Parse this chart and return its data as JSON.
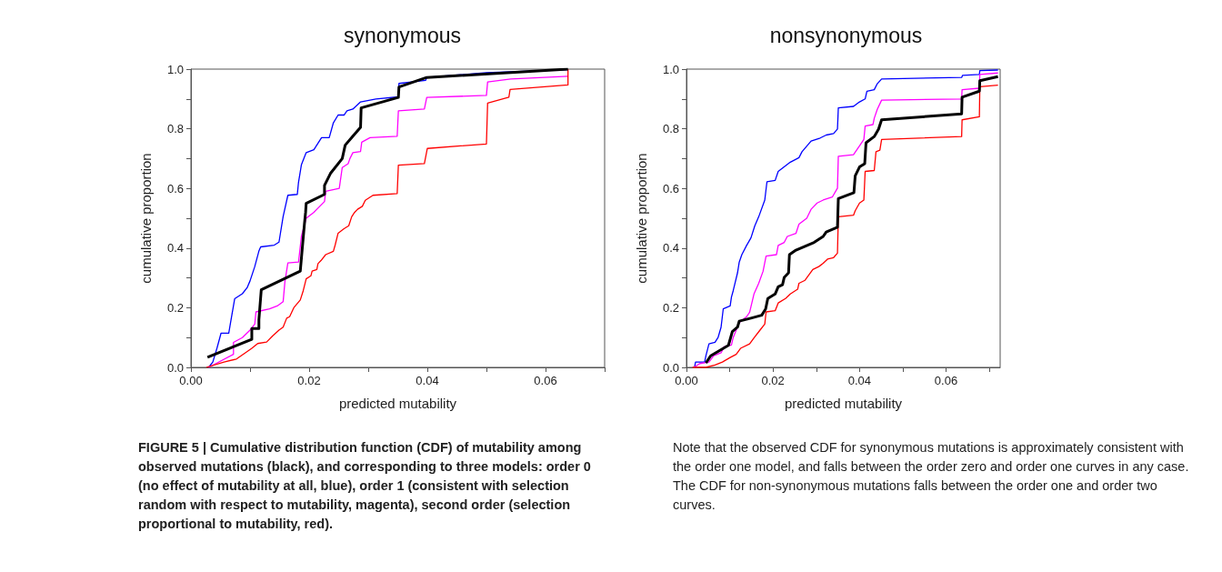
{
  "chart_data": [
    {
      "type": "line",
      "title": "synonymous",
      "xlabel": "predicted mutability",
      "ylabel": "cumulative proportion",
      "xlim": [
        0,
        0.07
      ],
      "ylim": [
        0,
        1
      ],
      "xticks": [
        {
          "value": 0,
          "label": "0.00"
        },
        {
          "value": 0.01,
          "label": null
        },
        0.02,
        {
          "value": 0.03,
          "label": null
        },
        0.04,
        {
          "value": 0.05,
          "label": null
        },
        0.06,
        {
          "value": 0.07,
          "label": null
        }
      ],
      "yticks": [
        {
          "value": 0,
          "label": "0.0"
        },
        {
          "value": 0.1,
          "label": null
        },
        0.2,
        {
          "value": 0.3,
          "label": null
        },
        0.4,
        {
          "value": 0.5,
          "label": null
        },
        0.6,
        {
          "value": 0.7,
          "label": null
        },
        0.8,
        {
          "value": 0.9,
          "label": null
        },
        {
          "value": 1,
          "label": "1.0"
        }
      ],
      "grid": false,
      "marker": "none",
      "series": [
        {
          "color": "#0000ff",
          "x": [
            0.003,
            0.0037,
            0.0044,
            0.0051,
            0.0064,
            0.0067,
            0.0074,
            0.0087,
            0.0095,
            0.01,
            0.0108,
            0.0115,
            0.0118,
            0.0141,
            0.0149,
            0.0156,
            0.0164,
            0.018,
            0.0182,
            0.0187,
            0.0195,
            0.0208,
            0.0221,
            0.0234,
            0.0241,
            0.0249,
            0.0259,
            0.0264,
            0.0274,
            0.0287,
            0.0313,
            0.0351,
            0.0352,
            0.0397,
            0.0399,
            0.05,
            0.0638,
            0.0638
          ],
          "values": [
            0,
            0.018,
            0.064,
            0.115,
            0.115,
            0.15,
            0.23,
            0.247,
            0.267,
            0.29,
            0.338,
            0.39,
            0.404,
            0.41,
            0.42,
            0.506,
            0.577,
            0.58,
            0.62,
            0.68,
            0.72,
            0.73,
            0.77,
            0.77,
            0.82,
            0.846,
            0.846,
            0.86,
            0.866,
            0.89,
            0.9,
            0.907,
            0.952,
            0.962,
            0.972,
            0.988,
            0.998,
            1.0
          ]
        },
        {
          "color": "#ff00ff",
          "x": [
            0.003,
            0.0072,
            0.0072,
            0.0087,
            0.01,
            0.0108,
            0.011,
            0.0133,
            0.0146,
            0.0156,
            0.0159,
            0.0164,
            0.0182,
            0.0187,
            0.0195,
            0.0208,
            0.0213,
            0.0226,
            0.0228,
            0.0251,
            0.0256,
            0.0266,
            0.0269,
            0.0274,
            0.0287,
            0.0289,
            0.0303,
            0.0349,
            0.0351,
            0.0395,
            0.0399,
            0.05,
            0.0502,
            0.0541,
            0.0638
          ],
          "values": [
            0,
            0.044,
            0.084,
            0.1,
            0.125,
            0.145,
            0.186,
            0.196,
            0.206,
            0.22,
            0.287,
            0.35,
            0.353,
            0.44,
            0.5,
            0.52,
            0.53,
            0.556,
            0.59,
            0.6,
            0.67,
            0.683,
            0.7,
            0.72,
            0.724,
            0.755,
            0.77,
            0.775,
            0.86,
            0.866,
            0.905,
            0.912,
            0.957,
            0.967,
            0.976
          ]
        },
        {
          "color": "#ff0000",
          "x": [
            0.0026,
            0.0056,
            0.0077,
            0.0092,
            0.0103,
            0.0113,
            0.0128,
            0.0138,
            0.0149,
            0.0156,
            0.0162,
            0.0167,
            0.0174,
            0.0185,
            0.019,
            0.0195,
            0.0203,
            0.0205,
            0.0213,
            0.0215,
            0.022,
            0.0228,
            0.0241,
            0.0244,
            0.0249,
            0.0259,
            0.0267,
            0.0272,
            0.0277,
            0.0282,
            0.029,
            0.0295,
            0.0308,
            0.0349,
            0.0351,
            0.0395,
            0.04,
            0.05,
            0.0502,
            0.0538,
            0.054,
            0.0638,
            0.0638
          ],
          "values": [
            0,
            0.018,
            0.028,
            0.049,
            0.064,
            0.08,
            0.085,
            0.105,
            0.125,
            0.135,
            0.165,
            0.17,
            0.2,
            0.226,
            0.257,
            0.297,
            0.307,
            0.323,
            0.328,
            0.348,
            0.358,
            0.378,
            0.389,
            0.41,
            0.45,
            0.465,
            0.475,
            0.505,
            0.52,
            0.53,
            0.54,
            0.56,
            0.577,
            0.583,
            0.678,
            0.683,
            0.734,
            0.749,
            0.886,
            0.906,
            0.932,
            0.947,
            1.0
          ]
        },
        {
          "color": "#000000",
          "x": [
            0.0028,
            0.0103,
            0.0103,
            0.0115,
            0.0115,
            0.0119,
            0.0185,
            0.0192,
            0.0194,
            0.0195,
            0.0226,
            0.0226,
            0.0236,
            0.0256,
            0.0261,
            0.0274,
            0.0287,
            0.0288,
            0.0351,
            0.0352,
            0.0399,
            0.0638
          ],
          "values": [
            0.034,
            0.094,
            0.13,
            0.13,
            0.16,
            0.26,
            0.323,
            0.48,
            0.52,
            0.55,
            0.58,
            0.61,
            0.65,
            0.7,
            0.745,
            0.775,
            0.805,
            0.87,
            0.905,
            0.94,
            0.972,
            1.0
          ]
        }
      ],
      "annotations": [
        "FIGURE 5 | Cumulative distribution function (CDF) of mutability among observed mutations (black), and corresponding to three models: order 0 (no effect of mutability at all, blue), order 1 (consistent with selection random with respect to mutability, magenta), second order (selection proportional to mutability, red)."
      ]
    },
    {
      "type": "line",
      "title": "nonsynonymous",
      "xlabel": "predicted mutability",
      "ylabel": "cumulative proportion",
      "xlim": [
        0,
        0.0725
      ],
      "ylim": [
        0,
        1
      ],
      "xticks": [
        {
          "value": 0,
          "label": "0.00"
        },
        {
          "value": 0.01,
          "label": null
        },
        0.02,
        {
          "value": 0.03,
          "label": null
        },
        0.04,
        {
          "value": 0.05,
          "label": null
        },
        0.06,
        {
          "value": 0.07,
          "label": null
        }
      ],
      "yticks": [
        {
          "value": 0,
          "label": "0.0"
        },
        {
          "value": 0.1,
          "label": null
        },
        0.2,
        {
          "value": 0.3,
          "label": null
        },
        0.4,
        {
          "value": 0.5,
          "label": null
        },
        0.6,
        {
          "value": 0.7,
          "label": null
        },
        0.8,
        {
          "value": 0.9,
          "label": null
        },
        {
          "value": 1,
          "label": "1.0"
        }
      ],
      "grid": false,
      "marker": "none",
      "series": [
        {
          "color": "#0000ff",
          "x": [
            0.0019,
            0.0021,
            0.0042,
            0.0045,
            0.0052,
            0.0066,
            0.0073,
            0.008,
            0.0085,
            0.0101,
            0.0104,
            0.0108,
            0.0118,
            0.0122,
            0.0128,
            0.0139,
            0.0149,
            0.0158,
            0.0167,
            0.0181,
            0.0186,
            0.0205,
            0.0212,
            0.024,
            0.026,
            0.0267,
            0.0288,
            0.0309,
            0.0323,
            0.034,
            0.0349,
            0.0351,
            0.0386,
            0.04,
            0.0413,
            0.0417,
            0.0434,
            0.0441,
            0.0451,
            0.0636,
            0.0638,
            0.0677,
            0.0678,
            0.072
          ],
          "values": [
            0.003,
            0.018,
            0.018,
            0.039,
            0.079,
            0.084,
            0.1,
            0.135,
            0.196,
            0.206,
            0.236,
            0.257,
            0.317,
            0.353,
            0.378,
            0.409,
            0.434,
            0.475,
            0.505,
            0.561,
            0.622,
            0.627,
            0.657,
            0.688,
            0.703,
            0.723,
            0.759,
            0.769,
            0.779,
            0.784,
            0.799,
            0.87,
            0.875,
            0.89,
            0.9,
            0.926,
            0.931,
            0.951,
            0.967,
            0.972,
            0.979,
            0.982,
            0.995,
            0.997
          ]
        },
        {
          "color": "#ff00ff",
          "x": [
            0.0017,
            0.0031,
            0.0052,
            0.0063,
            0.008,
            0.0087,
            0.0104,
            0.0108,
            0.0122,
            0.0139,
            0.0146,
            0.0156,
            0.0167,
            0.0177,
            0.0184,
            0.0208,
            0.0212,
            0.0226,
            0.0233,
            0.0253,
            0.026,
            0.0278,
            0.0288,
            0.0302,
            0.0316,
            0.0337,
            0.0349,
            0.0351,
            0.0386,
            0.04,
            0.041,
            0.0413,
            0.0431,
            0.0434,
            0.0441,
            0.0451,
            0.0636,
            0.0637,
            0.0677,
            0.0678,
            0.072
          ],
          "values": [
            0,
            0.013,
            0.018,
            0.039,
            0.049,
            0.069,
            0.075,
            0.1,
            0.15,
            0.17,
            0.185,
            0.246,
            0.282,
            0.322,
            0.373,
            0.378,
            0.409,
            0.419,
            0.439,
            0.449,
            0.48,
            0.5,
            0.53,
            0.551,
            0.561,
            0.571,
            0.601,
            0.708,
            0.713,
            0.743,
            0.764,
            0.809,
            0.814,
            0.835,
            0.865,
            0.896,
            0.9,
            0.931,
            0.936,
            0.982,
            0.987
          ]
        },
        {
          "color": "#ff0000",
          "x": [
            0.0014,
            0.0045,
            0.0066,
            0.0083,
            0.0101,
            0.0115,
            0.0125,
            0.0146,
            0.0156,
            0.017,
            0.0181,
            0.0184,
            0.0205,
            0.0212,
            0.0229,
            0.024,
            0.0257,
            0.026,
            0.0274,
            0.0292,
            0.0306,
            0.0316,
            0.0326,
            0.034,
            0.0349,
            0.0351,
            0.0386,
            0.039,
            0.04,
            0.041,
            0.0413,
            0.0434,
            0.0438,
            0.0447,
            0.0451,
            0.0636,
            0.0637,
            0.0677,
            0.0678,
            0.072
          ],
          "values": [
            0,
            0,
            0.008,
            0.018,
            0.033,
            0.044,
            0.064,
            0.079,
            0.099,
            0.125,
            0.145,
            0.186,
            0.19,
            0.216,
            0.231,
            0.246,
            0.262,
            0.282,
            0.292,
            0.328,
            0.338,
            0.349,
            0.363,
            0.368,
            0.383,
            0.505,
            0.51,
            0.525,
            0.551,
            0.561,
            0.657,
            0.66,
            0.723,
            0.728,
            0.764,
            0.774,
            0.83,
            0.84,
            0.941,
            0.946
          ]
        },
        {
          "color": "#000000",
          "x": [
            0.0045,
            0.0056,
            0.0097,
            0.0106,
            0.0118,
            0.0122,
            0.0149,
            0.0174,
            0.0183,
            0.0188,
            0.0205,
            0.0212,
            0.0222,
            0.0226,
            0.0236,
            0.0238,
            0.0253,
            0.0295,
            0.0316,
            0.0323,
            0.0349,
            0.0351,
            0.0387,
            0.039,
            0.04,
            0.0412,
            0.0415,
            0.0434,
            0.0444,
            0.0451,
            0.0636,
            0.0637,
            0.0677,
            0.0678,
            0.072
          ],
          "values": [
            0.015,
            0.039,
            0.074,
            0.12,
            0.135,
            0.155,
            0.165,
            0.175,
            0.196,
            0.231,
            0.246,
            0.27,
            0.277,
            0.302,
            0.317,
            0.378,
            0.393,
            0.419,
            0.439,
            0.454,
            0.47,
            0.566,
            0.586,
            0.642,
            0.672,
            0.683,
            0.753,
            0.774,
            0.799,
            0.83,
            0.85,
            0.906,
            0.926,
            0.961,
            0.975
          ]
        }
      ],
      "annotations": [
        "Note that the observed CDF for synonymous mutations is approximately consistent with the order one model, and falls between the order zero and order one curves in any case. The CDF for non-synonymous mutations falls between the order one and order two curves."
      ]
    }
  ]
}
